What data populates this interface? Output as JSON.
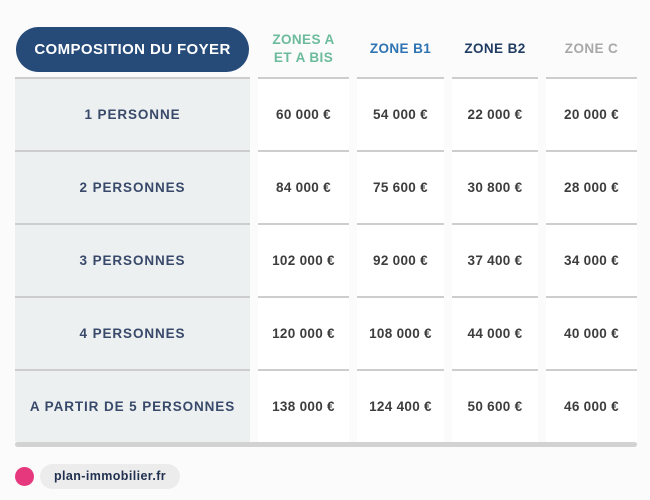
{
  "table": {
    "corner_label": "COMPOSITION DU FOYER",
    "col_headers": [
      {
        "label": "ZONES A ET A BIS",
        "lines": [
          "ZONES A",
          "ET A BIS"
        ],
        "color": "#6bbb9c"
      },
      {
        "label": "ZONE B1",
        "lines": [
          "ZONE B1"
        ],
        "color": "#2e73b2"
      },
      {
        "label": "ZONE B2",
        "lines": [
          "ZONE B2"
        ],
        "color": "#213c63"
      },
      {
        "label": "ZONE C",
        "lines": [
          "ZONE C"
        ],
        "color": "#a8a8a8"
      }
    ],
    "rows": [
      {
        "label": "1 PERSONNE",
        "values": [
          "60 000 €",
          "54 000 €",
          "22 000 €",
          "20 000 €"
        ]
      },
      {
        "label": "2 PERSONNES",
        "values": [
          "84 000 €",
          "75 600 €",
          "30 800 €",
          "28 000 €"
        ]
      },
      {
        "label": "3 PERSONNES",
        "values": [
          "102 000 €",
          "92 000 €",
          "37 400 €",
          "34 000 €"
        ]
      },
      {
        "label": "4 PERSONNES",
        "values": [
          "120 000 €",
          "108 000 €",
          "44 000 €",
          "40 000 €"
        ]
      },
      {
        "label": "A PARTIR DE 5 PERSONNES",
        "values": [
          "138 000 €",
          "124 400 €",
          "50 600 €",
          "46 000 €"
        ]
      }
    ]
  },
  "footer": {
    "brand": "plan-immobilier.fr",
    "dot_color": "#e6397d"
  },
  "colors": {
    "badge_background": "#264b79",
    "badge_text": "#ffffff",
    "zones_a_header": "#6bbb9c",
    "zone_b1_header": "#2e73b2",
    "zone_b2_header": "#213c63",
    "zone_c_header": "#a8a8a8",
    "label_column_background": "#ecf0f1",
    "label_text": "#39496a",
    "value_text": "#3d3d3d",
    "row_separator": "#cdcdcd",
    "bottom_bar": "#d2d2d2",
    "footer_dot": "#e6397d",
    "footer_pill_background": "#ececec"
  },
  "chart_data": {
    "type": "table",
    "title": "Composition du foyer — plafonds par zone",
    "columns": [
      "COMPOSITION DU FOYER",
      "ZONES A ET A BIS",
      "ZONE B1",
      "ZONE B2",
      "ZONE C"
    ],
    "rows": [
      [
        "1 PERSONNE",
        "60 000 €",
        "54 000 €",
        "22 000 €",
        "20 000 €"
      ],
      [
        "2 PERSONNES",
        "84 000 €",
        "75 600 €",
        "30 800 €",
        "28 000 €"
      ],
      [
        "3 PERSONNES",
        "102 000 €",
        "92 000 €",
        "37 400 €",
        "34 000 €"
      ],
      [
        "4 PERSONNES",
        "120 000 €",
        "108 000 €",
        "44 000 €",
        "40 000 €"
      ],
      [
        "A PARTIR DE 5 PERSONNES",
        "138 000 €",
        "124 400 €",
        "50 600 €",
        "46 000 €"
      ]
    ],
    "values_numeric_eur": {
      "zones_a_et_a_bis": [
        60000,
        84000,
        102000,
        120000,
        138000
      ],
      "zone_b1": [
        54000,
        75600,
        92000,
        108000,
        124400
      ],
      "zone_b2": [
        22000,
        30800,
        37400,
        44000,
        50600
      ],
      "zone_c": [
        20000,
        28000,
        34000,
        40000,
        46000
      ]
    },
    "source_watermark": "plan-immobilier.fr"
  }
}
